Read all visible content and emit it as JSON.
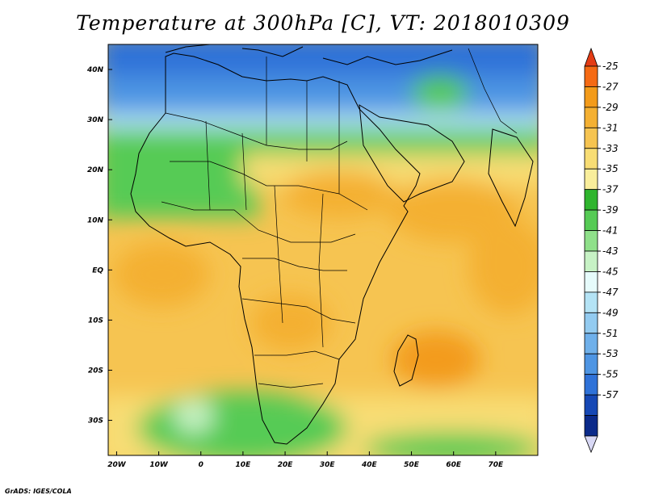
{
  "title": "Temperature at 300hPa [C], VT: 2018010309",
  "credit": "GrADS: IGES/COLA",
  "map": {
    "lon_range": [
      -22,
      80
    ],
    "lat_range": [
      -37,
      45
    ],
    "lon_ticks": [
      {
        "value": -20,
        "label": "20W"
      },
      {
        "value": -10,
        "label": "10W"
      },
      {
        "value": 0,
        "label": "0"
      },
      {
        "value": 10,
        "label": "10E"
      },
      {
        "value": 20,
        "label": "20E"
      },
      {
        "value": 30,
        "label": "30E"
      },
      {
        "value": 40,
        "label": "40E"
      },
      {
        "value": 50,
        "label": "50E"
      },
      {
        "value": 60,
        "label": "60E"
      },
      {
        "value": 70,
        "label": "70E"
      }
    ],
    "lat_ticks": [
      {
        "value": 40,
        "label": "40N"
      },
      {
        "value": 30,
        "label": "30N"
      },
      {
        "value": 20,
        "label": "20N"
      },
      {
        "value": 10,
        "label": "10N"
      },
      {
        "value": 0,
        "label": "EQ"
      },
      {
        "value": -10,
        "label": "10S"
      },
      {
        "value": -20,
        "label": "20S"
      },
      {
        "value": -30,
        "label": "30S"
      }
    ]
  },
  "colorbar": {
    "levels": [
      -25,
      -27,
      -29,
      -31,
      -33,
      -35,
      -37,
      -39,
      -41,
      -43,
      -45,
      -47,
      -49,
      -51,
      -53,
      -55,
      -57
    ],
    "colors": [
      "#e43c15",
      "#f56a14",
      "#f39b1a",
      "#f4b032",
      "#f6c451",
      "#f8dd74",
      "#f9ee9b",
      "#2fb52e",
      "#56cb55",
      "#8fe08a",
      "#c7f2c5",
      "#e6fbfb",
      "#b4e3f5",
      "#93cbf0",
      "#6fb0ea",
      "#4e95e3",
      "#2f72d8",
      "#1648b5",
      "#0b2a8a",
      "#d8d8f5"
    ]
  }
}
